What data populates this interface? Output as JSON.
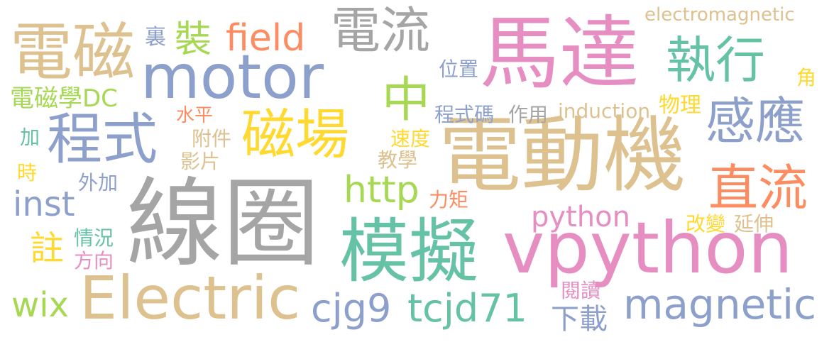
{
  "palette": {
    "gray": "#a5a5a5",
    "tan": "#ddc18f",
    "pink": "#e68ec2",
    "green": "#66c2a5",
    "blue": "#8da0cb",
    "yellow": "#ffd92f",
    "lime": "#a6d854",
    "orange": "#fc8d62"
  },
  "words": [
    {
      "id": "w01",
      "text": "線圈",
      "color": "gray"
    },
    {
      "id": "w02",
      "text": "電動機",
      "color": "tan"
    },
    {
      "id": "w03",
      "text": "馬達",
      "color": "pink"
    },
    {
      "id": "w04",
      "text": "vpython",
      "color": "pink"
    },
    {
      "id": "w05",
      "text": "模擬",
      "color": "green"
    },
    {
      "id": "w06",
      "text": "Electric",
      "color": "tan"
    },
    {
      "id": "w07",
      "text": "motor",
      "color": "blue"
    },
    {
      "id": "w08",
      "text": "電磁",
      "color": "tan"
    },
    {
      "id": "w09",
      "text": "程式",
      "color": "blue"
    },
    {
      "id": "w10",
      "text": "磁場",
      "color": "yellow"
    },
    {
      "id": "w11",
      "text": "電流",
      "color": "gray"
    },
    {
      "id": "w12",
      "text": "執行",
      "color": "green"
    },
    {
      "id": "w13",
      "text": "感應",
      "color": "blue"
    },
    {
      "id": "w14",
      "text": "直流",
      "color": "orange"
    },
    {
      "id": "w15",
      "text": "magnetic",
      "color": "blue"
    },
    {
      "id": "w16",
      "text": "中",
      "color": "lime"
    },
    {
      "id": "w17",
      "text": "cjg9",
      "color": "blue"
    },
    {
      "id": "w18",
      "text": "tcjd71",
      "color": "green"
    },
    {
      "id": "w19",
      "text": "http",
      "color": "lime"
    },
    {
      "id": "w20",
      "text": "field",
      "color": "orange"
    },
    {
      "id": "w21",
      "text": "inst",
      "color": "blue"
    },
    {
      "id": "w22",
      "text": "wix",
      "color": "lime"
    },
    {
      "id": "w23",
      "text": "裝",
      "color": "lime"
    },
    {
      "id": "w24",
      "text": "python",
      "color": "pink"
    },
    {
      "id": "w25",
      "text": "註",
      "color": "yellow"
    },
    {
      "id": "w26",
      "text": "下載",
      "color": "blue"
    },
    {
      "id": "w27",
      "text": "電磁學DC",
      "color": "lime"
    },
    {
      "id": "w28",
      "text": "electromagnetic",
      "color": "tan"
    },
    {
      "id": "w29",
      "text": "induction",
      "color": "tan"
    },
    {
      "id": "w30",
      "text": "物理",
      "color": "yellow"
    },
    {
      "id": "w31",
      "text": "程式碼",
      "color": "blue"
    },
    {
      "id": "w32",
      "text": "作用",
      "color": "gray"
    },
    {
      "id": "w33",
      "text": "位置",
      "color": "blue"
    },
    {
      "id": "w34",
      "text": "裏",
      "color": "blue"
    },
    {
      "id": "w35",
      "text": "角",
      "color": "yellow"
    },
    {
      "id": "w36",
      "text": "水平",
      "color": "orange"
    },
    {
      "id": "w37",
      "text": "附件",
      "color": "tan"
    },
    {
      "id": "w38",
      "text": "影片",
      "color": "tan"
    },
    {
      "id": "w39",
      "text": "速度",
      "color": "yellow"
    },
    {
      "id": "w40",
      "text": "教學",
      "color": "tan"
    },
    {
      "id": "w41",
      "text": "加",
      "color": "green"
    },
    {
      "id": "w42",
      "text": "時",
      "color": "yellow"
    },
    {
      "id": "w43",
      "text": "外加",
      "color": "blue"
    },
    {
      "id": "w44",
      "text": "力矩",
      "color": "orange"
    },
    {
      "id": "w45",
      "text": "改變",
      "color": "yellow"
    },
    {
      "id": "w46",
      "text": "延伸",
      "color": "tan"
    },
    {
      "id": "w47",
      "text": "情況",
      "color": "green"
    },
    {
      "id": "w48",
      "text": "方向",
      "color": "pink"
    },
    {
      "id": "w49",
      "text": "閱讀",
      "color": "pink"
    }
  ]
}
